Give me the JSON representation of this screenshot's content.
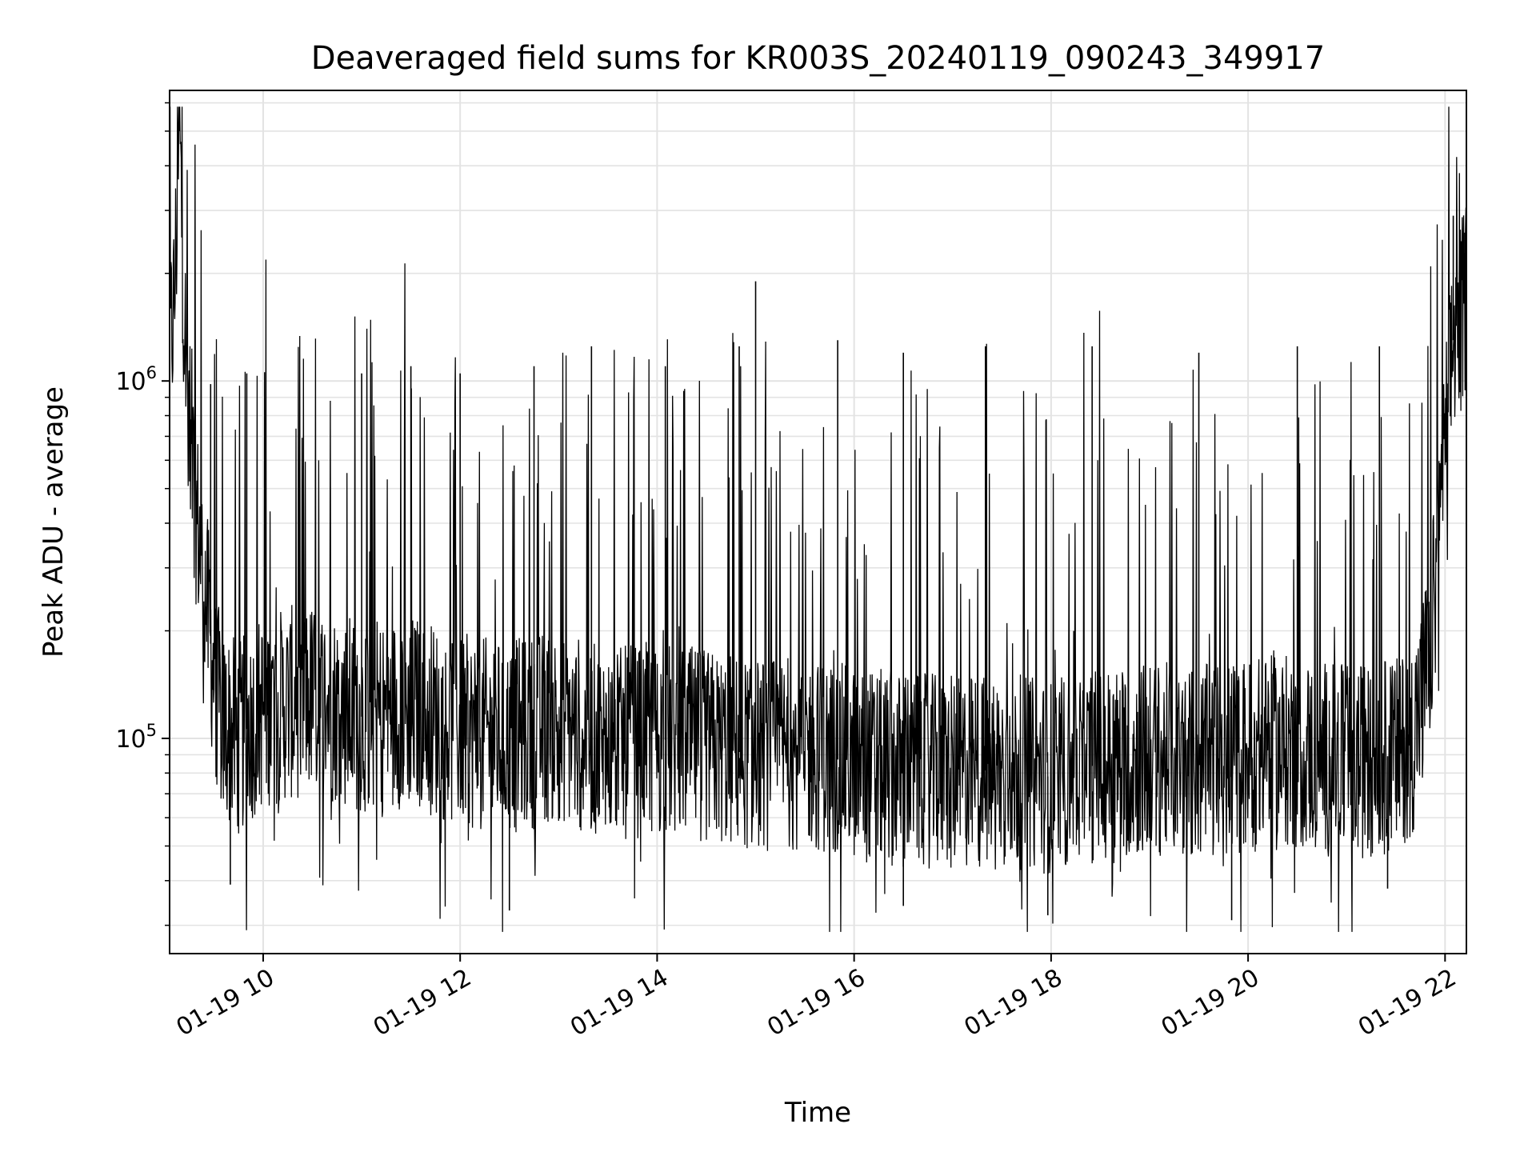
{
  "chart_data": {
    "type": "line",
    "title": "Deaveraged field sums for KR003S_20240119_090243_349917",
    "xlabel": "Time",
    "ylabel": "Peak ADU - average",
    "x_scale": "time",
    "y_scale": "log",
    "xlim": [
      "2024-01-19 09:03",
      "2024-01-19 22:13"
    ],
    "ylim": [
      25000,
      6500000
    ],
    "x_ticks": [
      {
        "time": "2024-01-19 10:00",
        "label": "01-19 10"
      },
      {
        "time": "2024-01-19 12:00",
        "label": "01-19 12"
      },
      {
        "time": "2024-01-19 14:00",
        "label": "01-19 14"
      },
      {
        "time": "2024-01-19 16:00",
        "label": "01-19 16"
      },
      {
        "time": "2024-01-19 18:00",
        "label": "01-19 18"
      },
      {
        "time": "2024-01-19 20:00",
        "label": "01-19 20"
      },
      {
        "time": "2024-01-19 22:00",
        "label": "01-19 22"
      }
    ],
    "y_ticks": [
      {
        "value": 100000,
        "label_base": "10",
        "label_exp": "5"
      },
      {
        "value": 1000000,
        "label_base": "10",
        "label_exp": "6"
      }
    ],
    "grid": true,
    "line_color": "#000000",
    "series": [
      {
        "x": [
          "2024-01-19 09:03",
          "2024-01-19 09:06",
          "2024-01-19 09:09",
          "2024-01-19 09:12",
          "2024-01-19 09:15",
          "2024-01-19 09:20",
          "2024-01-19 09:25",
          "2024-01-19 09:30",
          "2024-01-19 09:35",
          "2024-01-19 09:45",
          "2024-01-19 10:00",
          "2024-01-19 10:30",
          "2024-01-19 11:00",
          "2024-01-19 11:30",
          "2024-01-19 12:00",
          "2024-01-19 12:30",
          "2024-01-19 13:00",
          "2024-01-19 13:30",
          "2024-01-19 14:00",
          "2024-01-19 14:30",
          "2024-01-19 15:00",
          "2024-01-19 15:30",
          "2024-01-19 16:00",
          "2024-01-19 16:30",
          "2024-01-19 17:00",
          "2024-01-19 17:30",
          "2024-01-19 18:00",
          "2024-01-19 18:30",
          "2024-01-19 19:00",
          "2024-01-19 19:30",
          "2024-01-19 20:00",
          "2024-01-19 20:30",
          "2024-01-19 21:00",
          "2024-01-19 21:30",
          "2024-01-19 21:40",
          "2024-01-19 21:50",
          "2024-01-19 21:55",
          "2024-01-19 22:00",
          "2024-01-19 22:05",
          "2024-01-19 22:10",
          "2024-01-19 22:13"
        ],
        "y": [
          1200000,
          1700000,
          5000000,
          1500000,
          700000,
          400000,
          250000,
          150000,
          110000,
          100000,
          120000,
          130000,
          115000,
          120000,
          105000,
          100000,
          110000,
          95000,
          100000,
          95000,
          90000,
          92000,
          85000,
          82000,
          80000,
          82000,
          78000,
          85000,
          88000,
          85000,
          90000,
          92000,
          85000,
          90000,
          100000,
          160000,
          300000,
          650000,
          1300000,
          1500000,
          1800000
        ],
        "spikes": [
          {
            "x": "2024-01-19 09:09",
            "y": 5200000
          },
          {
            "x": "2024-01-19 09:28",
            "y": 980000
          },
          {
            "x": "2024-01-19 09:50",
            "y": 1050000
          },
          {
            "x": "2024-01-19 11:00",
            "y": 1050000
          },
          {
            "x": "2024-01-19 11:30",
            "y": 1100000
          },
          {
            "x": "2024-01-19 12:00",
            "y": 1050000
          },
          {
            "x": "2024-01-19 12:45",
            "y": 1100000
          },
          {
            "x": "2024-01-19 13:20",
            "y": 1250000
          },
          {
            "x": "2024-01-19 14:05",
            "y": 1100000
          },
          {
            "x": "2024-01-19 14:50",
            "y": 1250000
          },
          {
            "x": "2024-01-19 15:00",
            "y": 1900000
          },
          {
            "x": "2024-01-19 15:50",
            "y": 1300000
          },
          {
            "x": "2024-01-19 16:30",
            "y": 1200000
          },
          {
            "x": "2024-01-19 17:20",
            "y": 1250000
          },
          {
            "x": "2024-01-19 18:25",
            "y": 1250000
          },
          {
            "x": "2024-01-19 19:30",
            "y": 1200000
          },
          {
            "x": "2024-01-19 20:30",
            "y": 1250000
          },
          {
            "x": "2024-01-19 21:20",
            "y": 1250000
          },
          {
            "x": "2024-01-19 22:05",
            "y": 2900000
          },
          {
            "x": "2024-01-19 22:12",
            "y": 2600000
          }
        ],
        "dips": [
          {
            "x": "2024-01-19 09:40",
            "y": 39000
          },
          {
            "x": "2024-01-19 12:30",
            "y": 33000
          },
          {
            "x": "2024-01-19 16:30",
            "y": 34000
          },
          {
            "x": "2024-01-19 17:58",
            "y": 32000
          },
          {
            "x": "2024-01-19 19:50",
            "y": 31000
          },
          {
            "x": "2024-01-19 21:25",
            "y": 38000
          }
        ]
      }
    ]
  }
}
